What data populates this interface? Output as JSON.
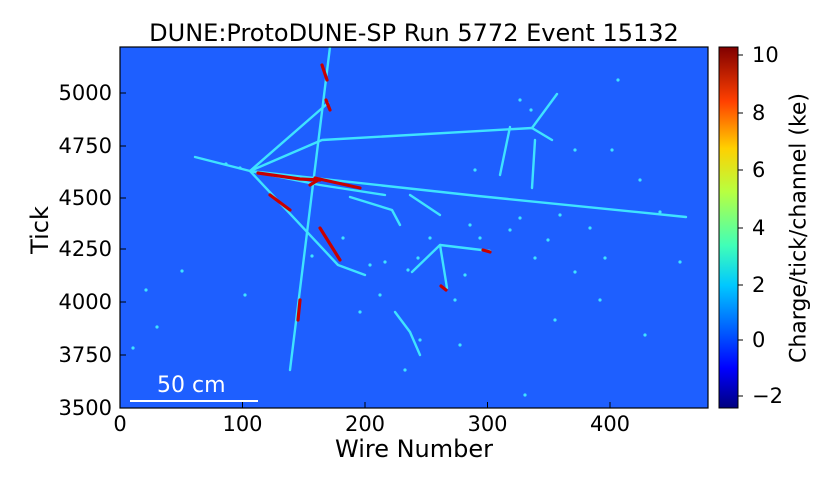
{
  "title": "DUNE:ProtoDUNE-SP Run 5772 Event 15132",
  "x_axis": {
    "label": "Wire Number",
    "range": [
      0,
      480
    ],
    "ticks": [
      "0",
      "100",
      "200",
      "300",
      "400"
    ]
  },
  "y_axis": {
    "label": "Tick",
    "range": [
      3500,
      5200
    ],
    "ticks": [
      "3500",
      "3750",
      "4000",
      "4250",
      "4500",
      "4750",
      "5000"
    ]
  },
  "colorbar": {
    "label": "Charge/tick/channel (ke)",
    "range": [
      -2.5,
      10
    ],
    "ticks": [
      "10",
      "8",
      "6",
      "4",
      "2",
      "0",
      "−2"
    ],
    "colormap": "jet"
  },
  "scale_bar": {
    "label": "50 cm"
  },
  "colors": {
    "background": "#1e5fff",
    "track": "#3fe3ff",
    "high_charge": "#c80000",
    "scale_bar": "#ffffff"
  }
}
